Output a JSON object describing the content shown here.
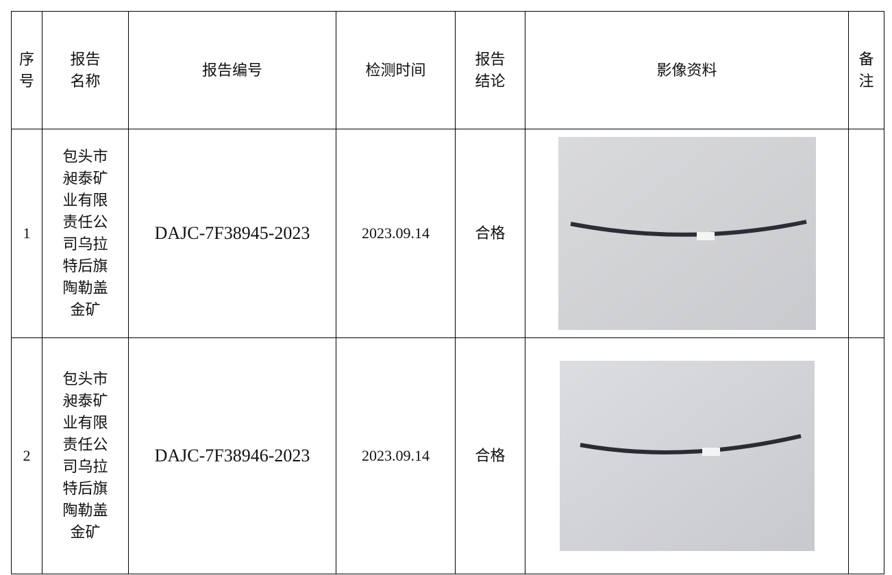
{
  "table": {
    "header": [
      "序号",
      "报告名称",
      "报告编号",
      "检测时间",
      "报告结论",
      "影像资料",
      "备注"
    ],
    "rows": [
      [
        "1",
        "包头市昶泰矿业有限责任公司乌拉特后旗陶勒盖金矿",
        "DAJC-7F38945-2023",
        "2023.09.14",
        "合格"
      ],
      [
        "2",
        "包头市昶泰矿业有限责任公司乌拉特后旗陶勒盖金矿",
        "DAJC-7F38946-2023",
        "2023.09.14",
        "合格"
      ]
    ]
  }
}
